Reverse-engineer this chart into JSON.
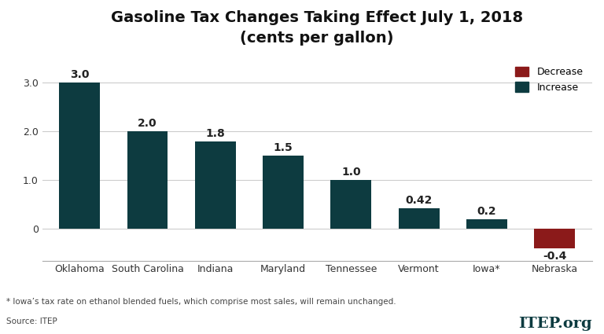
{
  "categories": [
    "Oklahoma",
    "South Carolina",
    "Indiana",
    "Maryland",
    "Tennessee",
    "Vermont",
    "Iowa*",
    "Nebraska"
  ],
  "values": [
    3.0,
    2.0,
    1.8,
    1.5,
    1.0,
    0.42,
    0.2,
    -0.4
  ],
  "bar_colors": [
    "#0d3b40",
    "#0d3b40",
    "#0d3b40",
    "#0d3b40",
    "#0d3b40",
    "#0d3b40",
    "#0d3b40",
    "#8b1a1a"
  ],
  "increase_color": "#0d3b40",
  "decrease_color": "#8b1a1a",
  "title_line1": "Gasoline Tax Changes Taking Effect July 1, 2018",
  "title_line2": "(cents per gallon)",
  "legend_decrease": "Decrease",
  "legend_increase": "Increase",
  "footnote": "* Iowa’s tax rate on ethanol blended fuels, which comprise most sales, will remain unchanged.",
  "source": "Source: ITEP",
  "itep_text": "ITEP.org",
  "ylim": [
    -0.65,
    3.6
  ],
  "yticks": [
    0.0,
    1.0,
    2.0,
    3.0
  ],
  "bar_width": 0.6,
  "value_labels": [
    "3.0",
    "2.0",
    "1.8",
    "1.5",
    "1.0",
    "0.42",
    "0.2",
    "-0.4"
  ],
  "background_color": "#ffffff",
  "grid_color": "#cccccc",
  "title_fontsize": 14,
  "label_fontsize": 10,
  "tick_fontsize": 9,
  "footnote_fontsize": 7.5
}
